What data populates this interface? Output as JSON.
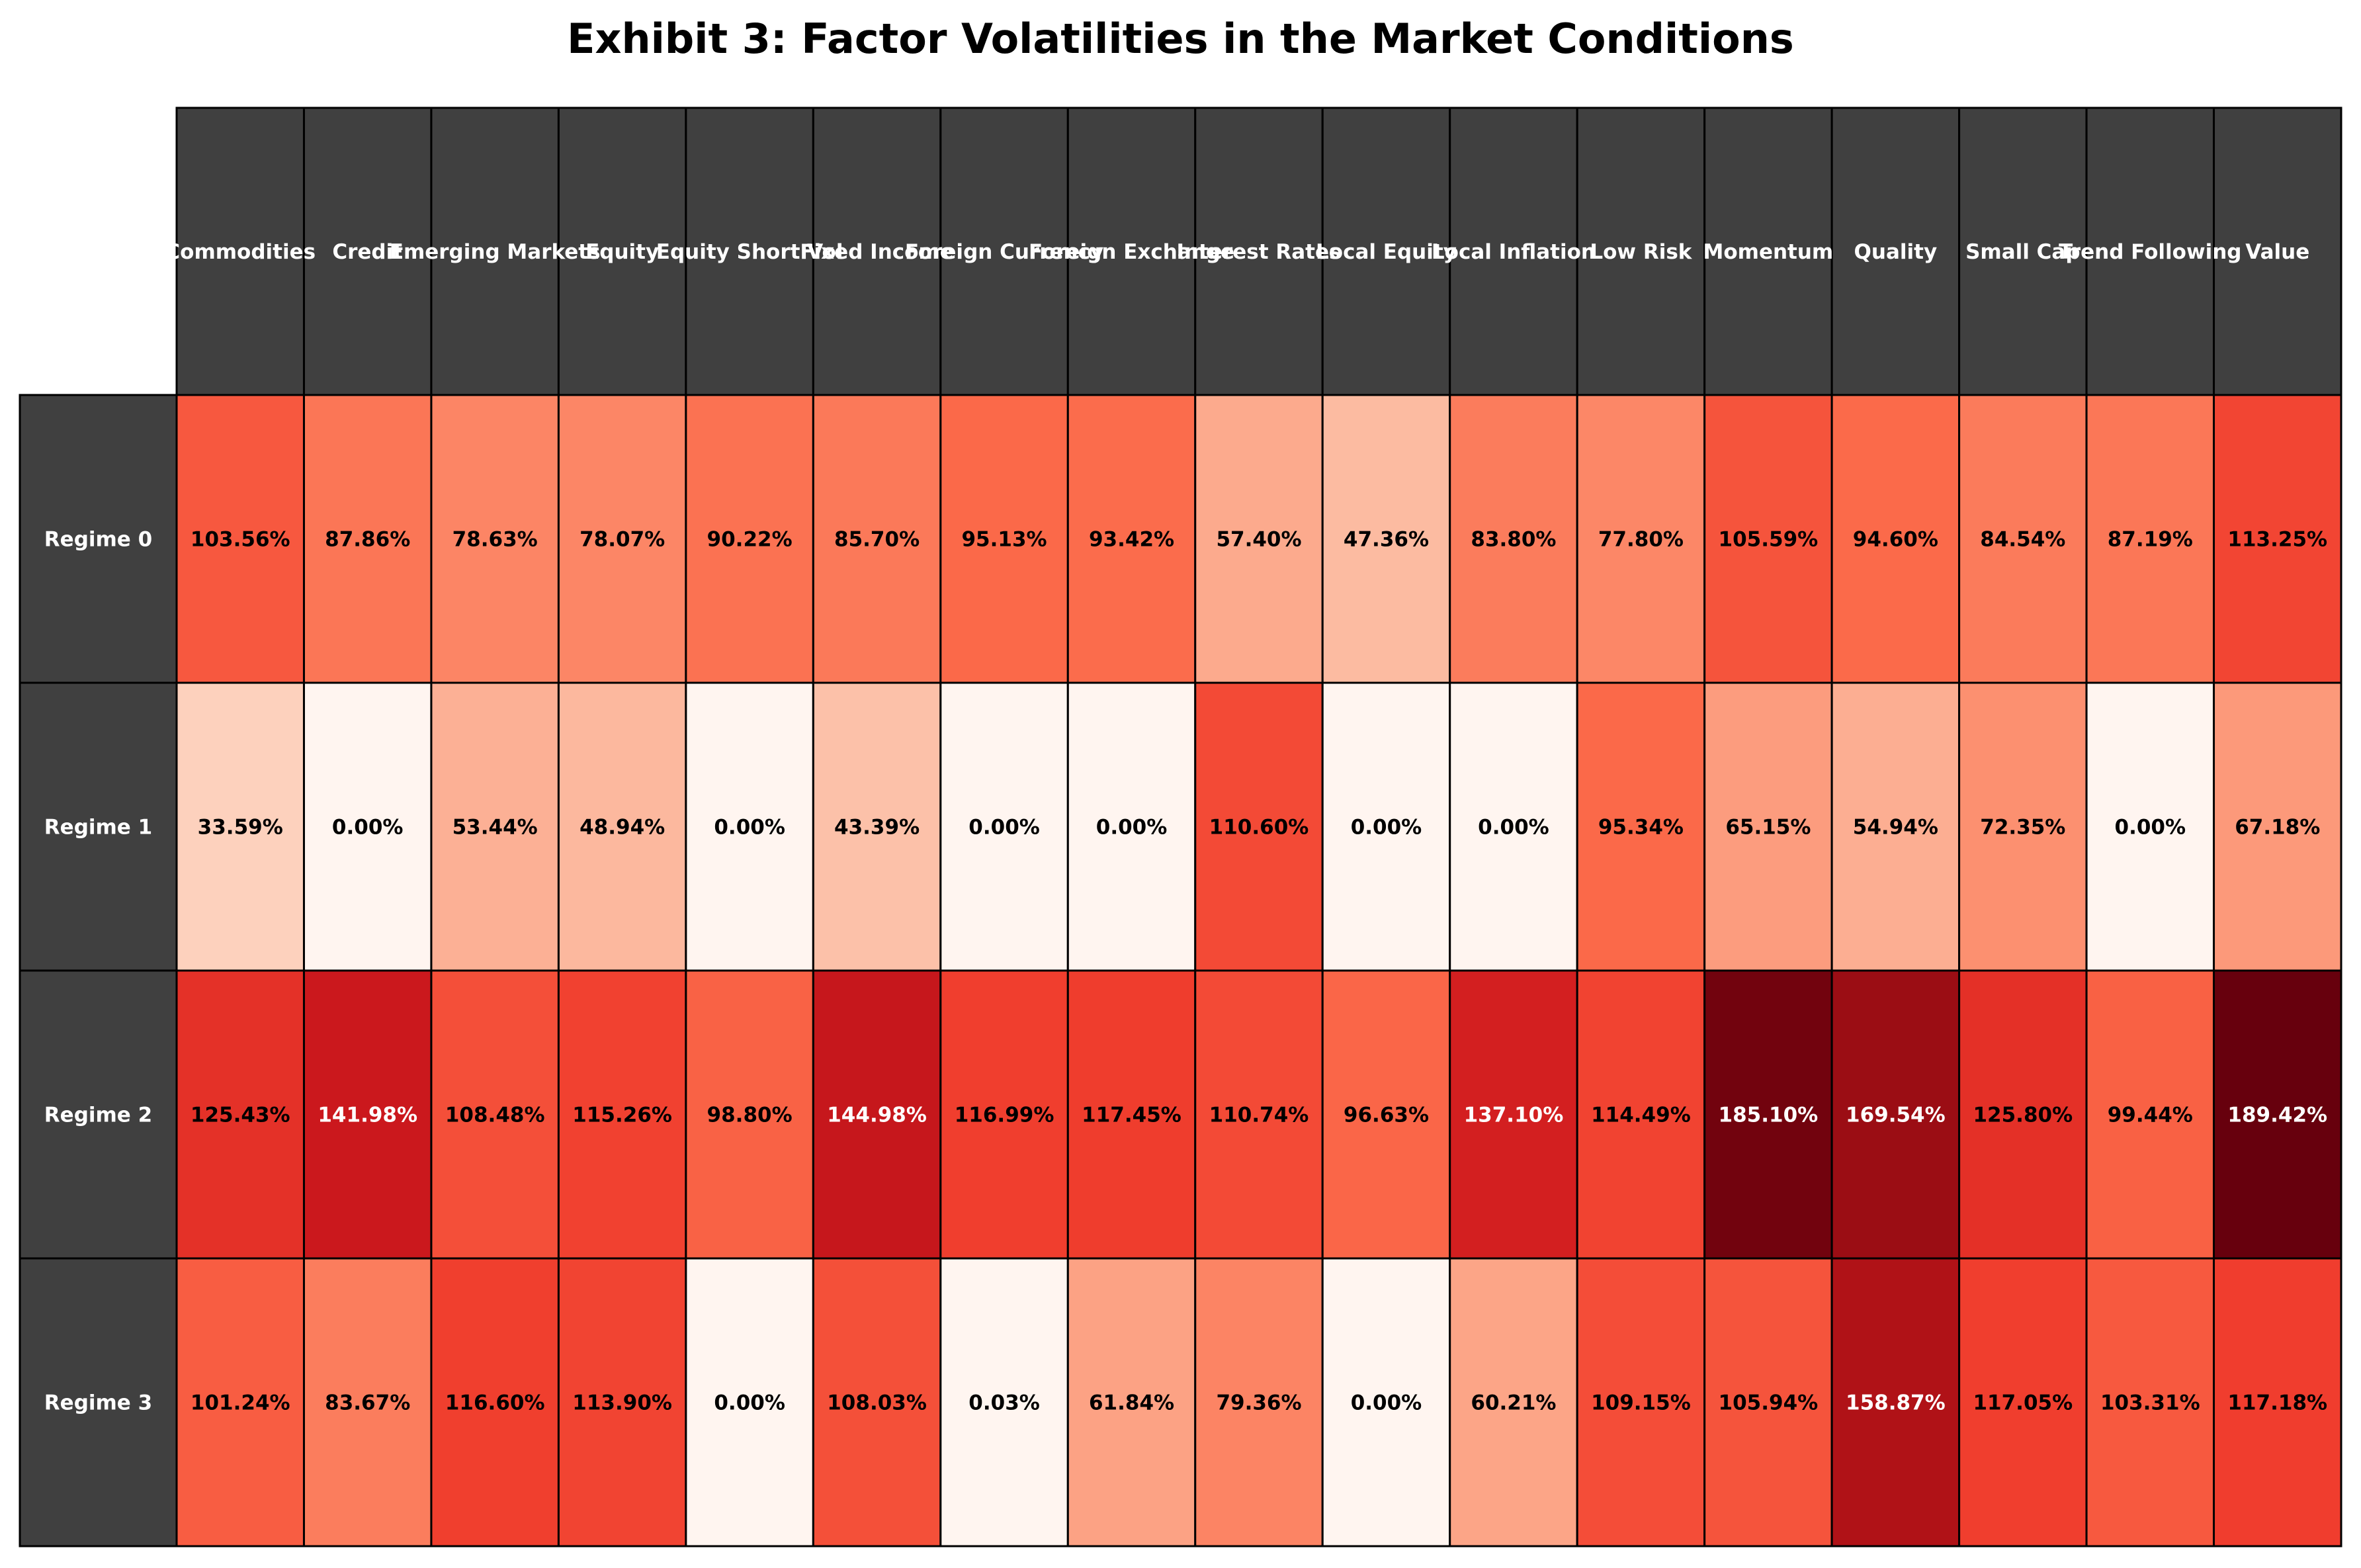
{
  "chart_data": {
    "type": "heatmap",
    "title": "Exhibit 3: Factor Volatilities in the Market Conditions",
    "columns": [
      "Commodities",
      "Credit",
      "Emerging Markets",
      "Equity",
      "Equity Short Vol",
      "Fixed Income",
      "Foreign Currency",
      "Foreign Exchange",
      "Interest Rates",
      "Local Equity",
      "Local Inflation",
      "Low Risk",
      "Momentum",
      "Quality",
      "Small Cap",
      "Trend Following",
      "Value"
    ],
    "rows": [
      "Regime 0",
      "Regime 1",
      "Regime 2",
      "Regime 3"
    ],
    "values": [
      [
        103.56,
        87.86,
        78.63,
        78.07,
        90.22,
        85.7,
        95.13,
        93.42,
        57.4,
        47.36,
        83.8,
        77.8,
        105.59,
        94.6,
        84.54,
        87.19,
        113.25
      ],
      [
        33.59,
        0.0,
        53.44,
        48.94,
        0.0,
        43.39,
        0.0,
        0.0,
        110.6,
        0.0,
        0.0,
        95.34,
        65.15,
        54.94,
        72.35,
        0.0,
        67.18
      ],
      [
        125.43,
        141.98,
        108.48,
        115.26,
        98.8,
        144.98,
        116.99,
        117.45,
        110.74,
        96.63,
        137.1,
        114.49,
        185.1,
        169.54,
        125.8,
        99.44,
        189.42
      ],
      [
        101.24,
        83.67,
        116.6,
        113.9,
        0.0,
        108.03,
        0.03,
        61.84,
        79.36,
        0.0,
        60.21,
        109.15,
        105.94,
        158.87,
        117.05,
        103.31,
        117.18
      ]
    ],
    "value_suffix": "%",
    "colormap": "Reds",
    "color_range": [
      0,
      189.42
    ],
    "header_color": "#404040",
    "header_text_color": "#ffffff"
  }
}
